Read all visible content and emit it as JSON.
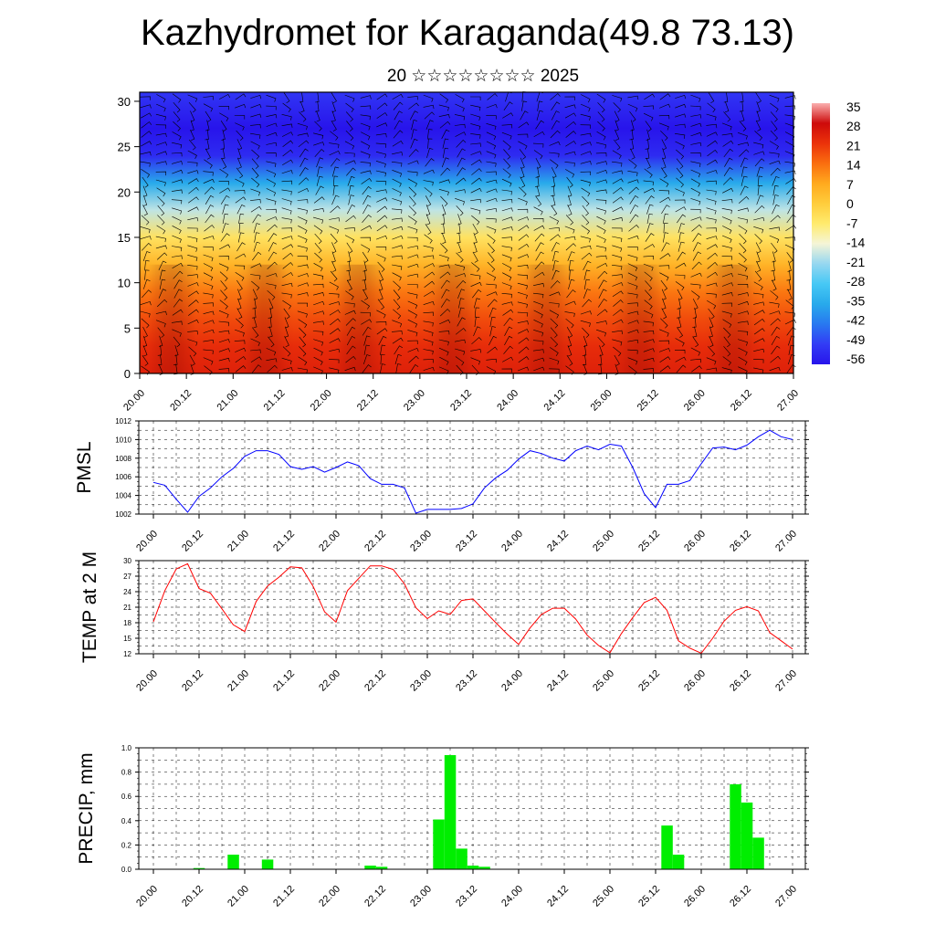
{
  "title": "Kazhydromet for Karaganda(49.8 73.13)",
  "subtitle": "20 ☆☆☆☆☆☆☆☆ 2025",
  "colorbar": {
    "labels": [
      "35",
      "28",
      "21",
      "14",
      "7",
      "0",
      "-7",
      "-14",
      "-21",
      "-28",
      "-35",
      "-42",
      "-49",
      "-56"
    ]
  },
  "chart_data": [
    {
      "type": "heatmap",
      "title": "",
      "xlabel": "",
      "ylabel": "",
      "x_tick_labels": [
        "20.00",
        "20.12",
        "21.00",
        "21.12",
        "22.00",
        "22.12",
        "23.00",
        "23.12",
        "24.00",
        "24.12",
        "25.00",
        "25.12",
        "26.00",
        "26.12",
        "27.00"
      ],
      "y_ticks": [
        0,
        5,
        10,
        15,
        20,
        25,
        30
      ],
      "ylim": [
        0,
        31
      ],
      "overlay": "wind barbs",
      "colorbar_levels": [
        35,
        28,
        21,
        14,
        7,
        0,
        -7,
        -14,
        -21,
        -28,
        -35,
        -42,
        -49,
        -56
      ],
      "temperature_profile": {
        "levels": [
          0,
          3,
          6,
          9,
          12,
          15,
          18,
          21,
          24,
          27,
          31
        ],
        "values": [
          24,
          22,
          18,
          13,
          5,
          -5,
          -18,
          -35,
          -52,
          -56,
          -50
        ]
      }
    },
    {
      "type": "line",
      "ylabel": "PMSL",
      "ylim": [
        1002,
        1012
      ],
      "y_ticks": [
        1002,
        1004,
        1006,
        1008,
        1010,
        1012
      ],
      "x_tick_labels": [
        "20.00",
        "20.12",
        "21.00",
        "21.12",
        "22.00",
        "22.12",
        "23.00",
        "23.12",
        "24.00",
        "24.12",
        "25.00",
        "25.12",
        "26.00",
        "26.12",
        "27.00"
      ],
      "line_color": "#0000ff",
      "values": [
        1005.4,
        1005.1,
        1003.6,
        1002.2,
        1003.9,
        1004.8,
        1006.0,
        1006.9,
        1008.2,
        1008.8,
        1008.8,
        1008.4,
        1007.1,
        1006.8,
        1007.1,
        1006.5,
        1007.0,
        1007.6,
        1007.2,
        1005.8,
        1005.2,
        1005.2,
        1004.8,
        1002.1,
        1002.5,
        1002.5,
        1002.5,
        1002.6,
        1003.1,
        1004.8,
        1005.9,
        1006.7,
        1007.9,
        1008.8,
        1008.5,
        1008.0,
        1007.7,
        1008.8,
        1009.3,
        1008.9,
        1009.5,
        1009.3,
        1007.0,
        1004.2,
        1002.7,
        1005.2,
        1005.2,
        1005.6,
        1007.4,
        1009.1,
        1009.2,
        1008.9,
        1009.4,
        1010.3,
        1011.0,
        1010.3,
        1010.0
      ]
    },
    {
      "type": "line",
      "ylabel": "TEMP at 2 M",
      "ylim": [
        12,
        30
      ],
      "y_ticks": [
        12,
        15,
        18,
        21,
        24,
        27,
        30
      ],
      "x_tick_labels": [
        "20.00",
        "20.12",
        "21.00",
        "21.12",
        "22.00",
        "22.12",
        "23.00",
        "23.12",
        "24.00",
        "24.12",
        "25.00",
        "25.12",
        "26.00",
        "26.12",
        "27.00"
      ],
      "line_color": "#ff0000",
      "values": [
        18.2,
        24.2,
        28.4,
        29.4,
        24.6,
        23.7,
        20.7,
        17.6,
        16.3,
        22.1,
        25.1,
        26.8,
        28.8,
        28.6,
        25.0,
        20.1,
        18.1,
        24.2,
        26.6,
        29.0,
        29.0,
        28.3,
        25.5,
        20.9,
        18.8,
        20.3,
        19.6,
        22.3,
        22.6,
        20.3,
        18.0,
        15.8,
        13.8,
        17.0,
        19.6,
        20.8,
        20.8,
        18.7,
        15.6,
        13.6,
        12.2,
        15.9,
        19.0,
        21.9,
        22.9,
        20.4,
        14.5,
        13.1,
        12.1,
        15.0,
        18.3,
        20.4,
        21.1,
        20.3,
        16.1,
        14.5,
        12.9
      ]
    },
    {
      "type": "bar",
      "ylabel": "PRECIP, mm",
      "ylim": [
        0,
        1.0
      ],
      "y_ticks": [
        0.0,
        0.2,
        0.4,
        0.6,
        0.8,
        1.0
      ],
      "x_tick_labels": [
        "20.00",
        "20.12",
        "21.00",
        "21.12",
        "22.00",
        "22.12",
        "23.00",
        "23.12",
        "24.00",
        "24.12",
        "25.00",
        "25.12",
        "26.00",
        "26.12",
        "27.00"
      ],
      "bar_color": "#00ee00",
      "values": [
        0,
        0,
        0,
        0,
        0.01,
        0,
        0,
        0.12,
        0,
        0,
        0.08,
        0,
        0,
        0,
        0,
        0,
        0,
        0,
        0,
        0.03,
        0.02,
        0,
        0,
        0,
        0,
        0.41,
        0.94,
        0.17,
        0.03,
        0.02,
        0,
        0,
        0,
        0,
        0,
        0,
        0,
        0,
        0,
        0,
        0,
        0,
        0,
        0,
        0,
        0.36,
        0.12,
        0,
        0,
        0,
        0,
        0.7,
        0.55,
        0.26,
        0,
        0,
        0
      ]
    }
  ]
}
